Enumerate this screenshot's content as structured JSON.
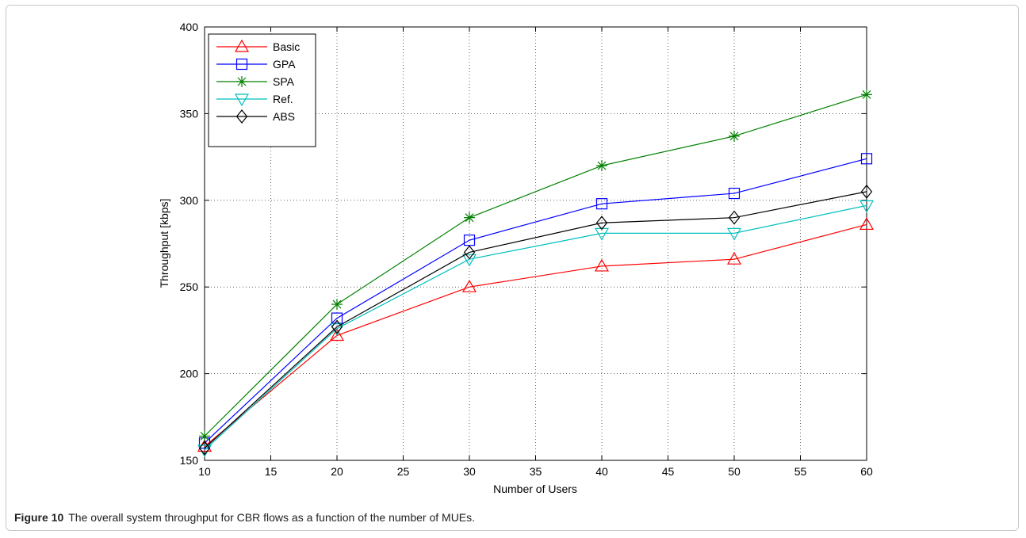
{
  "caption": {
    "label": "Figure 10",
    "text": "The overall system throughput for CBR flows as a function of the number of MUEs."
  },
  "chart_data": {
    "type": "line",
    "xlabel": "Number of Users",
    "ylabel": "Throughput [kbps]",
    "xlim": [
      10,
      60
    ],
    "ylim": [
      150,
      400
    ],
    "xticks": [
      10,
      15,
      20,
      25,
      30,
      35,
      40,
      45,
      50,
      55,
      60
    ],
    "yticks": [
      150,
      200,
      250,
      300,
      350,
      400
    ],
    "grid": true,
    "legend_position": "top-left",
    "x": [
      10,
      20,
      30,
      40,
      50,
      60
    ],
    "series": [
      {
        "name": "Basic",
        "color": "#ff0000",
        "marker": "triangle-up",
        "values": [
          158,
          222,
          250,
          262,
          266,
          286
        ]
      },
      {
        "name": "GPA",
        "color": "#0000ff",
        "marker": "square",
        "values": [
          160,
          232,
          277,
          298,
          304,
          324
        ]
      },
      {
        "name": "SPA",
        "color": "#008000",
        "marker": "asterisk",
        "values": [
          164,
          240,
          290,
          320,
          337,
          361
        ]
      },
      {
        "name": "Ref.",
        "color": "#00bfbf",
        "marker": "triangle-down",
        "values": [
          156,
          226,
          266,
          281,
          281,
          297
        ]
      },
      {
        "name": "ABS",
        "color": "#000000",
        "marker": "diamond",
        "values": [
          157,
          227,
          270,
          287,
          290,
          305
        ]
      }
    ]
  }
}
